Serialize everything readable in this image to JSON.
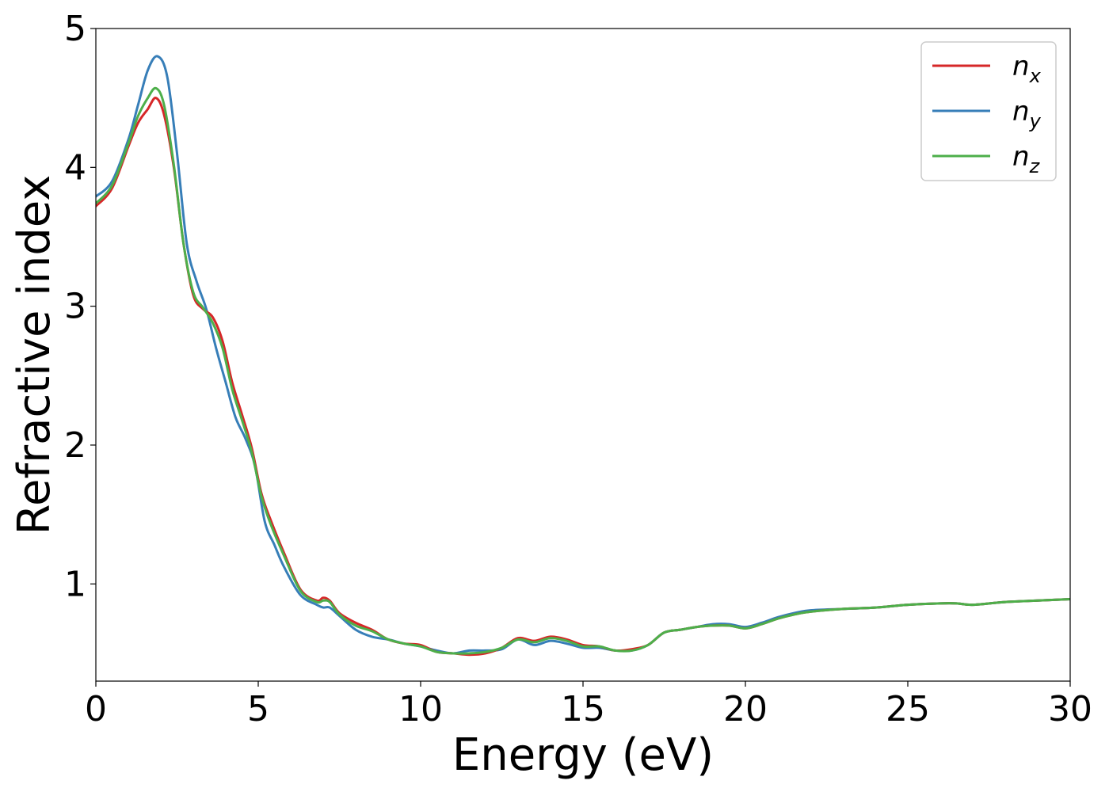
{
  "chart_data": {
    "type": "line",
    "xlabel": "Energy (eV)",
    "ylabel": "Refractive index",
    "xlim": [
      0,
      30
    ],
    "ylim": [
      0.3,
      5.0
    ],
    "xticks": [
      0,
      5,
      10,
      15,
      20,
      25,
      30
    ],
    "yticks": [
      1,
      2,
      3,
      4,
      5
    ],
    "grid": false,
    "legend_position": "top-right",
    "series": [
      {
        "name": "n_x",
        "legend_base": "n",
        "legend_sub": "x",
        "color": "#d62728",
        "x": [
          0,
          0.5,
          1.0,
          1.3,
          1.6,
          1.85,
          2.1,
          2.4,
          2.7,
          3.0,
          3.3,
          3.6,
          3.9,
          4.2,
          4.5,
          4.8,
          5.1,
          5.4,
          5.8,
          6.3,
          6.8,
          7.0,
          7.2,
          7.5,
          8.0,
          8.5,
          9.0,
          9.5,
          10.0,
          10.5,
          11.0,
          11.5,
          12.0,
          12.5,
          13.0,
          13.5,
          14.0,
          14.5,
          15.0,
          15.5,
          16.0,
          16.5,
          17.0,
          17.5,
          18.0,
          18.5,
          19.0,
          19.5,
          20.0,
          20.5,
          21.0,
          21.5,
          22.0,
          23.0,
          24.0,
          25.0,
          26.0,
          26.5,
          27.0,
          28.0,
          29.0,
          30.0
        ],
        "y": [
          3.72,
          3.85,
          4.15,
          4.32,
          4.42,
          4.5,
          4.38,
          4.0,
          3.45,
          3.08,
          2.98,
          2.92,
          2.75,
          2.45,
          2.22,
          1.98,
          1.65,
          1.45,
          1.22,
          0.96,
          0.88,
          0.9,
          0.88,
          0.79,
          0.72,
          0.67,
          0.6,
          0.57,
          0.56,
          0.51,
          0.5,
          0.49,
          0.5,
          0.54,
          0.61,
          0.59,
          0.62,
          0.6,
          0.56,
          0.55,
          0.52,
          0.53,
          0.56,
          0.65,
          0.67,
          0.69,
          0.7,
          0.7,
          0.68,
          0.71,
          0.75,
          0.78,
          0.8,
          0.82,
          0.83,
          0.85,
          0.86,
          0.86,
          0.85,
          0.87,
          0.88,
          0.89
        ]
      },
      {
        "name": "n_y",
        "legend_base": "n",
        "legend_sub": "y",
        "color": "#377eb8",
        "x": [
          0,
          0.5,
          1.0,
          1.3,
          1.6,
          1.9,
          2.2,
          2.5,
          2.8,
          3.1,
          3.4,
          3.7,
          4.0,
          4.3,
          4.6,
          4.9,
          5.2,
          5.5,
          5.8,
          6.3,
          6.8,
          7.0,
          7.2,
          7.5,
          8.0,
          8.5,
          9.0,
          9.5,
          10.0,
          10.5,
          11.0,
          11.5,
          12.0,
          12.5,
          13.0,
          13.5,
          14.0,
          14.5,
          15.0,
          15.5,
          16.0,
          16.5,
          17.0,
          17.5,
          18.0,
          18.5,
          19.0,
          19.5,
          20.0,
          20.5,
          21.0,
          21.5,
          22.0,
          23.0,
          24.0,
          25.0,
          26.0,
          26.5,
          27.0,
          28.0,
          29.0,
          30.0
        ],
        "y": [
          3.79,
          3.9,
          4.2,
          4.45,
          4.7,
          4.8,
          4.65,
          4.1,
          3.45,
          3.18,
          2.98,
          2.7,
          2.45,
          2.2,
          2.05,
          1.85,
          1.45,
          1.28,
          1.12,
          0.92,
          0.85,
          0.83,
          0.83,
          0.77,
          0.67,
          0.62,
          0.6,
          0.57,
          0.55,
          0.52,
          0.5,
          0.52,
          0.52,
          0.53,
          0.6,
          0.56,
          0.59,
          0.57,
          0.54,
          0.54,
          0.52,
          0.52,
          0.56,
          0.65,
          0.67,
          0.69,
          0.71,
          0.71,
          0.69,
          0.72,
          0.76,
          0.79,
          0.81,
          0.82,
          0.83,
          0.85,
          0.86,
          0.86,
          0.85,
          0.87,
          0.88,
          0.89
        ]
      },
      {
        "name": "n_z",
        "legend_base": "n",
        "legend_sub": "z",
        "color": "#4daf4a",
        "x": [
          0,
          0.5,
          1.0,
          1.3,
          1.6,
          1.85,
          2.1,
          2.4,
          2.7,
          3.0,
          3.3,
          3.6,
          3.9,
          4.2,
          4.5,
          4.8,
          5.1,
          5.4,
          5.8,
          6.3,
          6.8,
          7.0,
          7.2,
          7.5,
          8.0,
          8.5,
          9.0,
          9.5,
          10.0,
          10.5,
          11.0,
          11.5,
          12.0,
          12.5,
          13.0,
          13.5,
          14.0,
          14.5,
          15.0,
          15.5,
          16.0,
          16.5,
          17.0,
          17.5,
          18.0,
          18.5,
          19.0,
          19.5,
          20.0,
          20.5,
          21.0,
          21.5,
          22.0,
          23.0,
          24.0,
          25.0,
          26.0,
          26.5,
          27.0,
          28.0,
          29.0,
          30.0
        ],
        "y": [
          3.74,
          3.87,
          4.17,
          4.37,
          4.5,
          4.57,
          4.45,
          4.02,
          3.45,
          3.1,
          2.99,
          2.88,
          2.7,
          2.4,
          2.18,
          1.95,
          1.63,
          1.42,
          1.2,
          0.95,
          0.87,
          0.88,
          0.87,
          0.78,
          0.7,
          0.66,
          0.6,
          0.57,
          0.55,
          0.51,
          0.5,
          0.5,
          0.51,
          0.54,
          0.6,
          0.58,
          0.61,
          0.59,
          0.55,
          0.55,
          0.52,
          0.52,
          0.56,
          0.65,
          0.67,
          0.69,
          0.7,
          0.7,
          0.68,
          0.71,
          0.75,
          0.78,
          0.8,
          0.82,
          0.83,
          0.85,
          0.86,
          0.86,
          0.85,
          0.87,
          0.88,
          0.89
        ]
      }
    ]
  }
}
